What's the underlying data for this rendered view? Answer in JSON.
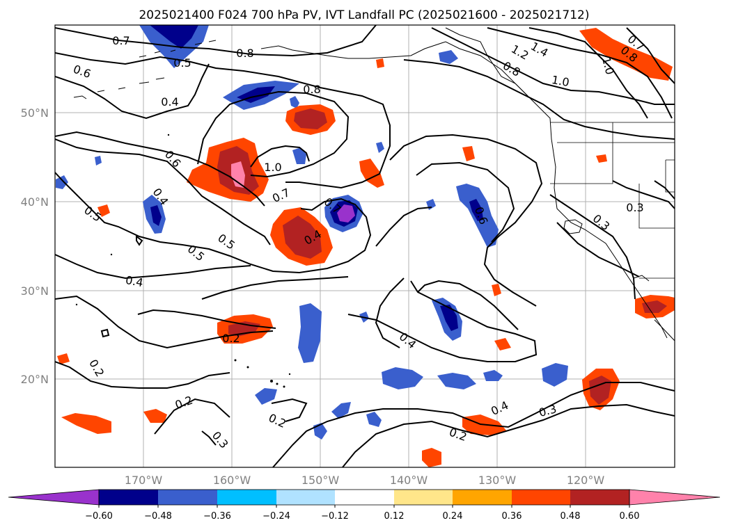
{
  "title": "2025021400 F024 700 hPa PV, IVT Landfall PC (2025021600 - 2025021712)",
  "lat_labels": [
    "50°N",
    "40°N",
    "30°N",
    "20°N"
  ],
  "lon_labels": [
    "170°W",
    "160°W",
    "150°W",
    "140°W",
    "130°W",
    "120°W"
  ],
  "colorbar": {
    "ticks": [
      "−0.60",
      "−0.48",
      "−0.36",
      "−0.24",
      "−0.12",
      "0.12",
      "0.24",
      "0.36",
      "0.48",
      "0.60"
    ],
    "colors": [
      "#9932cc",
      "#00008b",
      "#3a5fcd",
      "#00bfff",
      "#b0e2ff",
      "#ffffff",
      "#ffe68a",
      "#ffa500",
      "#ff4500",
      "#b22222",
      "#ff82ab"
    ]
  },
  "contour_labels": [
    "0.7",
    "0.5",
    "0.8",
    "0.6",
    "0.4",
    "0.8",
    "1.0",
    "0.6",
    "0.4",
    "0.7",
    "0.5",
    "0.5",
    "0.5",
    "0.4",
    "0.4",
    "0.2",
    "0.2",
    "0.2",
    "0.2",
    "0.4",
    "0.3",
    "0.2",
    "0.4",
    "0.7",
    "1.2",
    "1.4",
    "0.8",
    "1.0",
    "0.8",
    "0.7",
    "0.3",
    "0.3",
    "1.0",
    "0.6",
    "0.3"
  ]
}
